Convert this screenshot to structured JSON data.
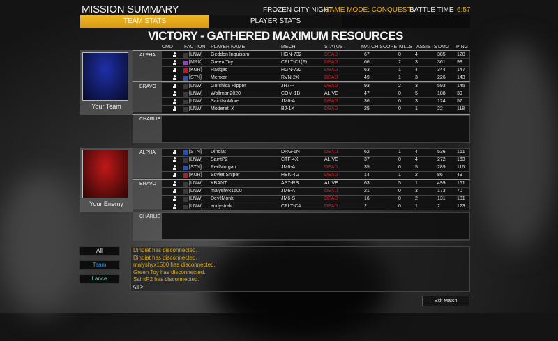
{
  "header": {
    "title": "MISSION SUMMARY",
    "map": "FROZEN CITY NIGHT",
    "game_mode": "GAME MODE: CONQUEST",
    "battle_time_label": "BATTLE TIME",
    "battle_time": "6:57"
  },
  "tabs": [
    {
      "label": "TEAM STATS",
      "active": true
    },
    {
      "label": "PLAYER STATS",
      "active": false
    }
  ],
  "result": "VICTORY - GATHERED MAXIMUM RESOURCES",
  "columns": [
    "CMD",
    "FACTION",
    "PLAYER NAME",
    "MECH",
    "STATUS",
    "MATCH SCORE",
    "KILLS",
    "ASSISTS",
    "DMG",
    "PING"
  ],
  "colors": {
    "accent": "#e8a91c",
    "dead": "#c8202c",
    "team_flag": "#1f2fa8",
    "enemy_flag": "#c01818",
    "team_btn": "#3a8fe0",
    "lance_btn": "#6fc5a0",
    "chat": "#d7a91f",
    "MRK": "#9b3bd0",
    "KUR": "#a8202a",
    "STN": "#2d4fb0",
    "LNW": "#3a3a3a"
  },
  "teams": [
    {
      "name": "Your Team",
      "flag": "blue",
      "lances": [
        {
          "label": "ALPHA",
          "players": [
            [
              "[LNW]",
              "Geddon Inquisam",
              "HGN-732",
              "DEAD",
              "67",
              "0",
              "4",
              "385",
              "120"
            ],
            [
              "[MRK]",
              "Green Toy",
              "CPLT-C1(F)",
              "DEAD",
              "66",
              "2",
              "3",
              "361",
              "98"
            ],
            [
              "[KUR]",
              "Radgad",
              "HGN-732",
              "DEAD",
              "63",
              "1",
              "4",
              "344",
              "147"
            ],
            [
              "[STN]",
              "Menxar",
              "RVN-2X",
              "DEAD",
              "49",
              "1",
              "3",
              "226",
              "143"
            ]
          ]
        },
        {
          "label": "BRAVO",
          "players": [
            [
              "[LNW]",
              "Gorchica Ripper",
              "JR7-F",
              "DEAD",
              "93",
              "2",
              "3",
              "593",
              "145"
            ],
            [
              "[LNW]",
              "Wolfman2020",
              "COM-1B",
              "ALIVE",
              "47",
              "0",
              "5",
              "188",
              "39"
            ],
            [
              "[LNW]",
              "SaintNoMore",
              "JM6-A",
              "DEAD",
              "36",
              "0",
              "3",
              "124",
              "57"
            ],
            [
              "[LNW]",
              "Moderati X",
              "BJ-1X",
              "DEAD",
              "25",
              "0",
              "1",
              "22",
              "118"
            ]
          ]
        },
        {
          "label": "CHARLIE",
          "players": []
        }
      ]
    },
    {
      "name": "Your Enemy",
      "flag": "red",
      "lances": [
        {
          "label": "ALPHA",
          "players": [
            [
              "[STN]",
              "Dindiat",
              "DRG-1N",
              "DEAD",
              "62",
              "1",
              "4",
              "536",
              "161"
            ],
            [
              "[LNW]",
              "SaintP2",
              "CTF-4X",
              "ALIVE",
              "37",
              "0",
              "4",
              "272",
              "163"
            ],
            [
              "[STN]",
              "RedMorgan",
              "JM6-A",
              "DEAD",
              "35",
              "0",
              "5",
              "289",
              "116"
            ],
            [
              "[KUR]",
              "Soviet Sniper",
              "HBK-4G",
              "DEAD",
              "14",
              "1",
              "2",
              "86",
              "49"
            ]
          ]
        },
        {
          "label": "BRAVO",
          "players": [
            [
              "[LNW]",
              "KBANT",
              "AS7-RS",
              "ALIVE",
              "63",
              "5",
              "1",
              "499",
              "161"
            ],
            [
              "[LNW]",
              "malyshyx1500",
              "JM6-A",
              "DEAD",
              "21",
              "0",
              "3",
              "173",
              "70"
            ],
            [
              "[LNW]",
              "DevilMonk",
              "JM6-S",
              "DEAD",
              "16",
              "0",
              "2",
              "131",
              "101"
            ],
            [
              "[LNW]",
              "andystrak",
              "CPLT-C4",
              "DEAD",
              "2",
              "0",
              "1",
              "2",
              "123"
            ]
          ]
        },
        {
          "label": "CHARLIE",
          "players": []
        }
      ]
    }
  ],
  "chat": {
    "filters": [
      "All",
      "Team",
      "Lance"
    ],
    "messages": [
      "Dindiat has disconnected.",
      "Dindiat has disconnected.",
      "malyshyx1500 has disconnected.",
      "Green Toy has disconnected.",
      "SaintP2 has disconnected."
    ],
    "prompt": "All >"
  },
  "exit_label": "Exit Match"
}
